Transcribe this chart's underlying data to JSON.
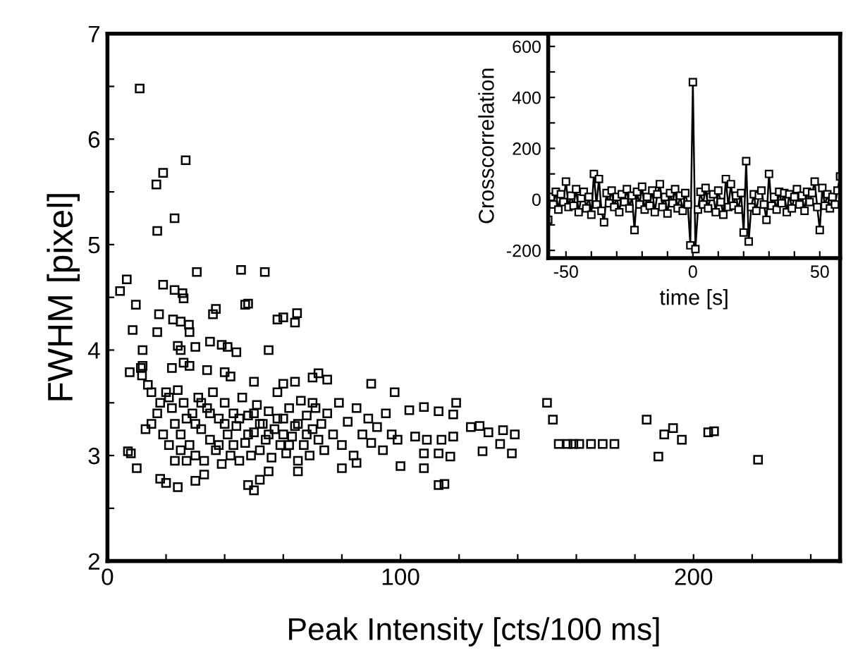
{
  "chart_data": [
    {
      "type": "scatter",
      "marker": "square",
      "color": "#000000",
      "xlabel": "Peak Intensity [cts/100 ms]",
      "ylabel": "FWHM [pixel]",
      "xlim": [
        0,
        250
      ],
      "ylim": [
        2,
        7
      ],
      "xticks": [
        0,
        {
          "value": 20,
          "label": null
        },
        {
          "value": 40,
          "label": null
        },
        {
          "value": 60,
          "label": null
        },
        {
          "value": 80,
          "label": null
        },
        100,
        {
          "value": 120,
          "label": null
        },
        {
          "value": 140,
          "label": null
        },
        {
          "value": 160,
          "label": null
        },
        {
          "value": 180,
          "label": null
        },
        200,
        {
          "value": 220,
          "label": null
        },
        {
          "value": 240,
          "label": null
        }
      ],
      "yticks": [
        2,
        {
          "value": 2.5,
          "label": null
        },
        3,
        {
          "value": 3.5,
          "label": null
        },
        4,
        {
          "value": 4.5,
          "label": null
        },
        5,
        {
          "value": 5.5,
          "label": null
        },
        6,
        {
          "value": 6.5,
          "label": null
        },
        7
      ],
      "x": [
        11,
        26.7,
        19,
        16.7,
        22.9,
        17,
        30.5,
        45.6,
        53.7,
        6.6,
        4.3,
        19,
        22.9,
        25.6,
        26,
        9.7,
        37,
        36,
        48,
        47,
        58,
        60,
        64.7,
        64,
        17.6,
        22.4,
        25,
        27.8,
        8.6,
        17,
        28,
        24,
        25,
        30,
        35,
        39,
        41,
        44,
        55,
        12,
        7.6,
        11.4,
        12,
        11.8,
        13.8,
        15,
        22,
        26,
        28,
        34,
        40,
        42,
        50,
        60,
        64,
        70,
        72,
        75,
        90,
        98,
        7,
        8,
        10,
        18,
        20,
        24,
        30,
        33,
        48,
        50,
        52,
        55,
        65,
        80,
        85,
        100,
        108,
        115,
        150,
        152,
        154,
        157,
        159,
        161,
        165,
        169,
        173,
        184,
        188,
        190,
        193,
        196,
        205,
        207,
        222,
        103,
        108,
        113,
        119,
        118,
        105,
        109,
        114,
        118,
        108,
        113,
        117,
        113,
        124,
        127,
        130,
        135,
        134,
        138,
        128,
        139,
        20,
        21,
        22,
        23,
        24,
        25,
        26,
        27,
        28,
        29,
        30,
        31,
        32,
        33,
        34,
        35,
        36,
        37,
        38,
        39,
        40,
        41,
        42,
        43,
        44,
        45,
        46,
        47,
        48,
        49,
        50,
        51,
        52,
        53,
        54,
        55,
        56,
        57,
        58,
        59,
        60,
        61,
        62,
        63,
        64,
        65,
        66,
        67,
        68,
        69,
        70,
        71,
        72,
        73,
        74,
        75,
        77,
        79,
        80,
        82,
        84,
        85,
        87,
        89,
        90,
        92,
        94,
        95,
        97,
        99,
        25,
        27,
        30,
        32,
        35,
        38,
        40,
        43,
        45,
        48,
        50,
        52,
        55,
        58,
        60,
        62,
        65,
        68,
        70,
        15,
        17,
        13,
        19,
        21,
        23,
        18
      ],
      "values": [
        6.48,
        5.8,
        5.68,
        5.57,
        5.25,
        5.13,
        4.74,
        4.76,
        4.74,
        4.67,
        4.56,
        4.62,
        4.57,
        4.54,
        4.49,
        4.43,
        4.39,
        4.34,
        4.44,
        4.43,
        4.29,
        4.31,
        4.35,
        4.26,
        4.34,
        4.29,
        4.27,
        4.24,
        4.19,
        4.17,
        4.17,
        4.04,
        4.0,
        4.03,
        4.08,
        4.05,
        4.03,
        3.98,
        4.0,
        4.0,
        3.79,
        3.83,
        3.85,
        3.76,
        3.67,
        3.6,
        3.83,
        3.88,
        3.85,
        3.81,
        3.79,
        3.75,
        3.7,
        3.68,
        3.7,
        3.74,
        3.78,
        3.72,
        3.68,
        3.6,
        3.04,
        3.02,
        2.88,
        2.78,
        2.74,
        2.7,
        2.76,
        2.82,
        2.72,
        2.67,
        2.77,
        2.85,
        2.85,
        2.88,
        2.93,
        2.9,
        2.88,
        2.73,
        3.5,
        3.34,
        3.11,
        3.11,
        3.11,
        3.11,
        3.11,
        3.11,
        3.11,
        3.34,
        2.99,
        3.2,
        3.26,
        3.15,
        3.22,
        3.23,
        2.96,
        3.43,
        3.46,
        3.42,
        3.5,
        3.39,
        3.18,
        3.15,
        3.15,
        3.18,
        3.02,
        3.02,
        2.99,
        2.72,
        3.27,
        3.28,
        3.22,
        3.24,
        3.11,
        3.02,
        3.04,
        3.2,
        3.6,
        3.55,
        3.45,
        3.3,
        3.62,
        3.2,
        3.5,
        3.35,
        3.1,
        3.4,
        3.0,
        3.55,
        3.25,
        2.95,
        3.45,
        3.15,
        3.6,
        3.05,
        3.35,
        2.92,
        3.5,
        3.2,
        3.0,
        3.4,
        3.28,
        2.95,
        3.55,
        3.12,
        3.38,
        3.0,
        3.22,
        3.48,
        3.05,
        3.3,
        3.15,
        3.42,
        2.98,
        3.25,
        3.6,
        3.1,
        3.35,
        3.02,
        3.45,
        3.18,
        3.28,
        2.95,
        3.52,
        3.1,
        3.38,
        3.0,
        3.25,
        3.45,
        3.15,
        3.3,
        3.05,
        3.4,
        3.2,
        3.5,
        3.1,
        3.32,
        3.0,
        3.45,
        3.2,
        3.35,
        3.12,
        3.27,
        3.05,
        3.4,
        3.2,
        3.15,
        3.05,
        2.95,
        3.3,
        3.5,
        3.4,
        3.1,
        3.3,
        3.1,
        3.35,
        3.2,
        3.4,
        3.3,
        3.2,
        3.35,
        3.2,
        3.1,
        3.3,
        3.2,
        3.5,
        3.3,
        3.4,
        3.25,
        3.2,
        3.1,
        2.95,
        3.5
      ]
    },
    {
      "type": "line",
      "marker": "square",
      "xlabel": "time [s]",
      "ylabel": "Crosscorrelation",
      "xlim": [
        -57,
        58
      ],
      "ylim": [
        -230,
        650
      ],
      "xticks": [
        {
          "value": -40,
          "label": null
        },
        -50,
        {
          "value": -30,
          "label": null
        },
        {
          "value": -20,
          "label": null
        },
        {
          "value": -10,
          "label": null
        },
        0,
        {
          "value": 10,
          "label": null
        },
        {
          "value": 20,
          "label": null
        },
        {
          "value": 30,
          "label": null
        },
        {
          "value": 40,
          "label": null
        },
        50
      ],
      "yticks": [
        -200,
        {
          "value": -100,
          "label": null
        },
        0,
        {
          "value": 100,
          "label": null
        },
        200,
        {
          "value": 300,
          "label": null
        },
        400,
        {
          "value": 500,
          "label": null
        },
        600
      ],
      "series": [
        {
          "color": "#000000",
          "x": [
            -57,
            -56,
            -55,
            -54,
            -53,
            -52,
            -51,
            -50,
            -49,
            -48,
            -47,
            -46,
            -45,
            -44,
            -43,
            -42,
            -41,
            -40,
            -39,
            -38,
            -37,
            -36,
            -35,
            -34,
            -33,
            -32,
            -31,
            -30,
            -29,
            -28,
            -27,
            -26,
            -25,
            -24,
            -23,
            -22,
            -21,
            -20,
            -19,
            -18,
            -17,
            -16,
            -15,
            -14,
            -13,
            -12,
            -11,
            -10,
            -9,
            -8,
            -7,
            -6,
            -5,
            -4,
            -3,
            -2,
            -1,
            0,
            1,
            2,
            3,
            4,
            5,
            6,
            7,
            8,
            9,
            10,
            11,
            12,
            13,
            14,
            15,
            16,
            17,
            18,
            19,
            20,
            21,
            22,
            23,
            24,
            25,
            26,
            27,
            28,
            29,
            30,
            31,
            32,
            33,
            34,
            35,
            36,
            37,
            38,
            39,
            40,
            41,
            42,
            43,
            44,
            45,
            46,
            47,
            48,
            49,
            50,
            51,
            52,
            53,
            54,
            55,
            56,
            57,
            58
          ],
          "values": [
            -80,
            10,
            -20,
            30,
            -40,
            20,
            -10,
            70,
            -30,
            15,
            -25,
            40,
            -50,
            5,
            30,
            -35,
            10,
            -60,
            100,
            -20,
            80,
            -45,
            -90,
            25,
            -15,
            35,
            -30,
            10,
            -50,
            20,
            -10,
            40,
            -35,
            15,
            -120,
            30,
            -20,
            50,
            -40,
            10,
            -25,
            35,
            -50,
            20,
            60,
            -30,
            10,
            -55,
            25,
            -15,
            40,
            -35,
            15,
            -45,
            25,
            -20,
            -180,
            460,
            -195,
            -40,
            30,
            -20,
            45,
            -35,
            10,
            20,
            -50,
            35,
            -10,
            -60,
            80,
            -30,
            60,
            -25,
            15,
            -40,
            25,
            -130,
            150,
            -165,
            -30,
            20,
            -45,
            15,
            35,
            -20,
            -80,
            100,
            -25,
            10,
            -40,
            30,
            -15,
            25,
            -50,
            20,
            -35,
            10,
            40,
            -20,
            15,
            -45,
            30,
            -10,
            25,
            70,
            -30,
            -120,
            45,
            -25,
            20,
            -35,
            10,
            -20,
            35,
            90
          ]
        }
      ]
    }
  ]
}
